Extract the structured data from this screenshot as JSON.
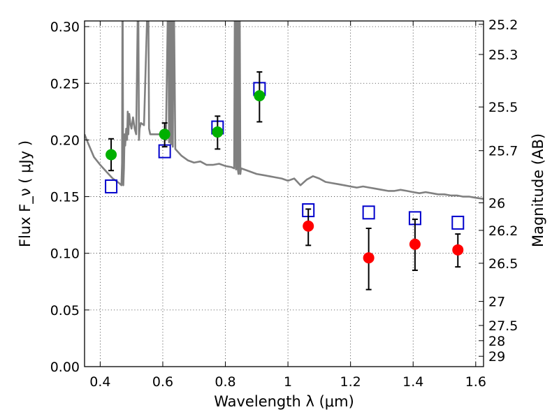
{
  "chart_data": {
    "type": "scatter",
    "xlabel": "Wavelength  λ (μm)",
    "ylabel": "Flux  F_ν  ( μJy )",
    "y2label": "Magnitude (AB)",
    "xlim": [
      0.35,
      1.625
    ],
    "ylim": [
      0.0,
      0.305
    ],
    "xticks": [
      0.4,
      0.6,
      0.8,
      1.0,
      1.2,
      1.4,
      1.6
    ],
    "xtick_labels": [
      "0.4",
      "0.6",
      "0.8",
      "1",
      "1.2",
      "1.4",
      "1.6"
    ],
    "yticks": [
      0.0,
      0.05,
      0.1,
      0.15,
      0.2,
      0.25,
      0.3
    ],
    "ytick_labels": [
      "0.00",
      "0.05",
      "0.10",
      "0.15",
      "0.20",
      "0.25",
      "0.30"
    ],
    "mag_ticks": [
      {
        "mag": 25.2,
        "label": "25.2"
      },
      {
        "mag": 25.3,
        "label": "25.3"
      },
      {
        "mag": 25.5,
        "label": "25.5"
      },
      {
        "mag": 25.7,
        "label": "25.7"
      },
      {
        "mag": 26,
        "label": "26"
      },
      {
        "mag": 26.2,
        "label": "26.2"
      },
      {
        "mag": 26.5,
        "label": "26.5"
      },
      {
        "mag": 27,
        "label": "27"
      },
      {
        "mag": 27.5,
        "label": "27.5"
      },
      {
        "mag": 28,
        "label": "28"
      },
      {
        "mag": 29,
        "label": "29"
      }
    ],
    "grid": true,
    "series": [
      {
        "marker": "circle",
        "color": "#00b000",
        "x": [
          0.435,
          0.606,
          0.775,
          0.909
        ],
        "y": [
          0.187,
          0.205,
          0.207,
          0.239
        ],
        "yerr_low": [
          0.173,
          0.194,
          0.192,
          0.216
        ],
        "yerr_high": [
          0.201,
          0.215,
          0.221,
          0.26
        ]
      },
      {
        "marker": "circle",
        "color": "#ff0000",
        "x": [
          1.065,
          1.258,
          1.406,
          1.543
        ],
        "y": [
          0.124,
          0.096,
          0.108,
          0.103
        ],
        "yerr_low": [
          0.107,
          0.068,
          0.085,
          0.088
        ],
        "yerr_high": [
          0.139,
          0.122,
          0.13,
          0.117
        ]
      },
      {
        "marker": "open-square",
        "color": "#0000cc",
        "x": [
          0.435,
          0.606,
          0.775,
          0.909,
          1.065,
          1.258,
          1.406,
          1.543
        ],
        "y": [
          0.159,
          0.19,
          0.211,
          0.245,
          0.138,
          0.136,
          0.131,
          0.127
        ]
      },
      {
        "marker": "line",
        "color": "#808080",
        "x": [
          0.35,
          0.36,
          0.38,
          0.4,
          0.42,
          0.44,
          0.46,
          0.468,
          0.47,
          0.471,
          0.472,
          0.473,
          0.474,
          0.476,
          0.478,
          0.48,
          0.483,
          0.486,
          0.488,
          0.49,
          0.493,
          0.496,
          0.5,
          0.505,
          0.51,
          0.515,
          0.52,
          0.522,
          0.524,
          0.526,
          0.53,
          0.54,
          0.55,
          0.552,
          0.554,
          0.556,
          0.56,
          0.58,
          0.6,
          0.61,
          0.616,
          0.618,
          0.62,
          0.622,
          0.624,
          0.626,
          0.628,
          0.63,
          0.632,
          0.634,
          0.636,
          0.64,
          0.66,
          0.68,
          0.7,
          0.72,
          0.74,
          0.76,
          0.78,
          0.8,
          0.82,
          0.828,
          0.83,
          0.832,
          0.834,
          0.836,
          0.838,
          0.84,
          0.842,
          0.844,
          0.846,
          0.848,
          0.85,
          0.86,
          0.88,
          0.9,
          0.92,
          0.94,
          0.96,
          0.98,
          1.0,
          1.02,
          1.04,
          1.06,
          1.08,
          1.1,
          1.12,
          1.14,
          1.16,
          1.18,
          1.2,
          1.22,
          1.24,
          1.26,
          1.28,
          1.3,
          1.32,
          1.34,
          1.36,
          1.38,
          1.4,
          1.42,
          1.44,
          1.46,
          1.48,
          1.5,
          1.52,
          1.54,
          1.56,
          1.58,
          1.6,
          1.625
        ],
        "y": [
          0.205,
          0.198,
          0.185,
          0.178,
          0.172,
          0.166,
          0.162,
          0.16,
          0.18,
          0.31,
          0.31,
          0.2,
          0.16,
          0.175,
          0.205,
          0.195,
          0.21,
          0.2,
          0.225,
          0.205,
          0.223,
          0.215,
          0.21,
          0.22,
          0.21,
          0.205,
          0.31,
          0.31,
          0.2,
          0.21,
          0.215,
          0.213,
          0.31,
          0.31,
          0.31,
          0.21,
          0.205,
          0.205,
          0.205,
          0.2,
          0.31,
          0.31,
          0.198,
          0.31,
          0.31,
          0.196,
          0.31,
          0.31,
          0.194,
          0.31,
          0.31,
          0.192,
          0.186,
          0.182,
          0.18,
          0.181,
          0.178,
          0.178,
          0.179,
          0.177,
          0.176,
          0.175,
          0.31,
          0.31,
          0.174,
          0.31,
          0.31,
          0.174,
          0.17,
          0.31,
          0.31,
          0.17,
          0.175,
          0.174,
          0.172,
          0.17,
          0.169,
          0.168,
          0.167,
          0.166,
          0.164,
          0.166,
          0.16,
          0.165,
          0.168,
          0.166,
          0.163,
          0.162,
          0.161,
          0.16,
          0.159,
          0.158,
          0.159,
          0.158,
          0.157,
          0.156,
          0.155,
          0.155,
          0.156,
          0.155,
          0.154,
          0.153,
          0.154,
          0.153,
          0.152,
          0.152,
          0.151,
          0.151,
          0.15,
          0.15,
          0.149,
          0.148
        ]
      }
    ]
  }
}
